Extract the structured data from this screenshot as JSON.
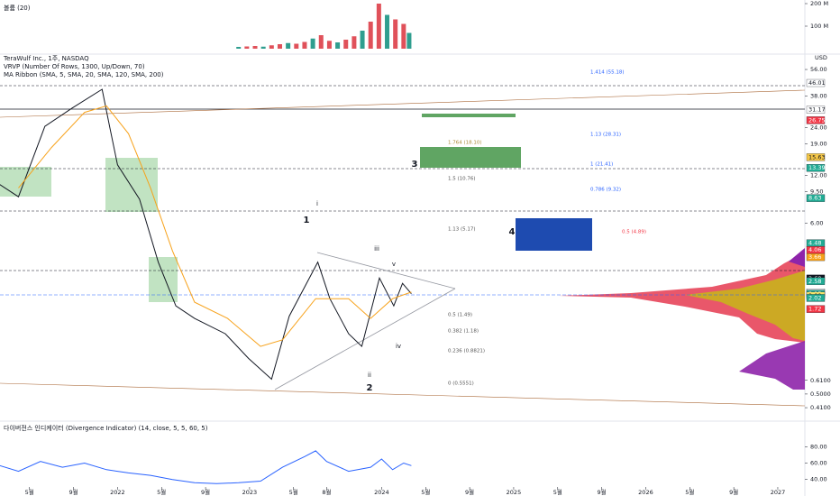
{
  "chart_data": {
    "type": "line",
    "title": "TeraWulf Inc., 1주, NASDAQ",
    "indicators": [
      "VRVP (Number Of Rows, 1300, Up/Down, 70)",
      "MA Ribbon (SMA, 5, SMA, 20, SMA, 120, SMA, 200)"
    ],
    "currency": "USD",
    "log_scale": true,
    "ylim": [
      0.346,
      68.2
    ],
    "yticks": [
      {
        "value": 56,
        "label": "56.00"
      },
      {
        "value": 38,
        "label": "38.00"
      },
      {
        "value": 24,
        "label": "24.00"
      },
      {
        "value": 19,
        "label": "19.00"
      },
      {
        "value": 12,
        "label": "12.00"
      },
      {
        "value": 9.5,
        "label": "9.50"
      },
      {
        "value": 6,
        "label": "6.00"
      },
      {
        "value": 0.61,
        "label": "0.6100"
      },
      {
        "value": 0.5,
        "label": "0.5000"
      },
      {
        "value": 0.41,
        "label": "0.4100"
      }
    ],
    "xlim": [
      1.32,
      74.46
    ],
    "xticks": [
      {
        "value": 4,
        "label": "5월"
      },
      {
        "value": 8,
        "label": "9월"
      },
      {
        "value": 12,
        "label": "2022"
      },
      {
        "value": 16,
        "label": "5월"
      },
      {
        "value": 20,
        "label": "9월"
      },
      {
        "value": 24,
        "label": "2023"
      },
      {
        "value": 28,
        "label": "5월"
      },
      {
        "value": 31,
        "label": "8월"
      },
      {
        "value": 36,
        "label": "2024"
      },
      {
        "value": 40,
        "label": "5월"
      },
      {
        "value": 44,
        "label": "9월"
      },
      {
        "value": 48,
        "label": "2025"
      },
      {
        "value": 52,
        "label": "5월"
      },
      {
        "value": 56,
        "label": "9월"
      },
      {
        "value": 60,
        "label": "2026"
      },
      {
        "value": 64,
        "label": "5월"
      },
      {
        "value": 68,
        "label": "9월"
      },
      {
        "value": 72,
        "label": "2027"
      }
    ],
    "series": [
      {
        "color": "#131722",
        "x": [
          1.3,
          3,
          5.4,
          7.9,
          10.6,
          11.3,
          12,
          14,
          15.7,
          17.3,
          19,
          21.8,
          23.9,
          26,
          27.6,
          30.2,
          31.3,
          33,
          34.2,
          35.8,
          37.1,
          37.9,
          38.7
        ],
        "values": [
          10.5,
          8.8,
          24.5,
          32,
          42,
          24,
          14,
          8.5,
          3.4,
          1.8,
          1.5,
          1.2,
          0.84,
          0.62,
          1.55,
          3.4,
          2.0,
          1.2,
          1.0,
          2.7,
          1.8,
          2.5,
          2.15
        ]
      },
      {
        "color": "#f7a21b",
        "x": [
          3,
          6,
          9,
          11,
          13,
          15,
          17,
          19,
          22,
          25,
          27,
          30,
          33,
          35,
          37,
          38.7
        ],
        "values": [
          10,
          18,
          30,
          33,
          22,
          10,
          4,
          1.9,
          1.5,
          1.0,
          1.1,
          2.0,
          2.0,
          1.5,
          2.0,
          2.2
        ]
      }
    ],
    "price_tags": {
      "values": [
        46.01,
        31.17,
        26.75,
        15.63,
        13.39,
        8.63,
        4.48,
        4.06,
        3.66,
        2.68,
        2.58,
        2.19,
        2.15,
        2.09,
        2.02,
        1.72
      ],
      "colors": [
        "#ffffff",
        "#ffffff",
        "#f23645",
        "#f7c948",
        "#22ab94",
        "#22ab94",
        "#22ab94",
        "#f23645",
        "#f7a21b",
        "#131722",
        "#22ab94",
        "#ffffff",
        "#22ab94",
        "#f7e36b",
        "#22ab94",
        "#f23645"
      ]
    },
    "annotations": [
      "1",
      "2",
      "3",
      "4",
      "i",
      "ii",
      "iii",
      "iv",
      "v"
    ],
    "fib_labels": [
      "1.764 (18.10)",
      "1.5 (10.76)",
      "1.13 (5.17)",
      "0.5 (1.49)",
      "0.382 (1.18)",
      "0.236 (0.8821)",
      "0 (0.5551)",
      "1 (21.41)",
      "0.786 (9.32)",
      "0.5 (4.89)",
      "1.414 (55.18)",
      "1.13 (28.31)"
    ],
    "volume": {
      "title": "볼륨 (20)",
      "color": "#e0515a",
      "ylim": [
        0,
        216
      ],
      "yticks": [
        {
          "value": 200,
          "label": "200 M"
        },
        {
          "value": 100,
          "label": "100 M"
        }
      ],
      "x": [
        23,
        23.75,
        24.5,
        25.25,
        26,
        26.75,
        27.5,
        28.25,
        29,
        29.75,
        30.5,
        31.25,
        32,
        32.75,
        33.5,
        34.25,
        35,
        35.75,
        36.5,
        37.25,
        38,
        38.5
      ],
      "values": [
        8,
        10,
        12,
        9,
        15,
        20,
        25,
        22,
        30,
        45,
        60,
        35,
        28,
        40,
        55,
        80,
        120,
        200,
        150,
        130,
        110,
        70
      ]
    },
    "divergence": {
      "title": "다이버전스 인디케이터 (Divergence Indicator) (14, close, 5, 5, 60, 5)",
      "color": "#2962ff",
      "ylim": [
        22,
        108
      ],
      "yticks": [
        {
          "value": 80,
          "label": "80.00"
        },
        {
          "value": 60,
          "label": "60.00"
        },
        {
          "value": 40,
          "label": "40.00"
        }
      ],
      "x": [
        1.3,
        3,
        5,
        7,
        9,
        11,
        13,
        15,
        17,
        19,
        21,
        23,
        25,
        27,
        29,
        30,
        31,
        33,
        35,
        36,
        37,
        38,
        38.7
      ],
      "values": [
        57,
        50,
        62,
        55,
        60,
        52,
        48,
        45,
        40,
        36,
        35,
        36,
        38,
        55,
        68,
        75,
        62,
        50,
        55,
        65,
        52,
        60,
        57
      ]
    }
  }
}
